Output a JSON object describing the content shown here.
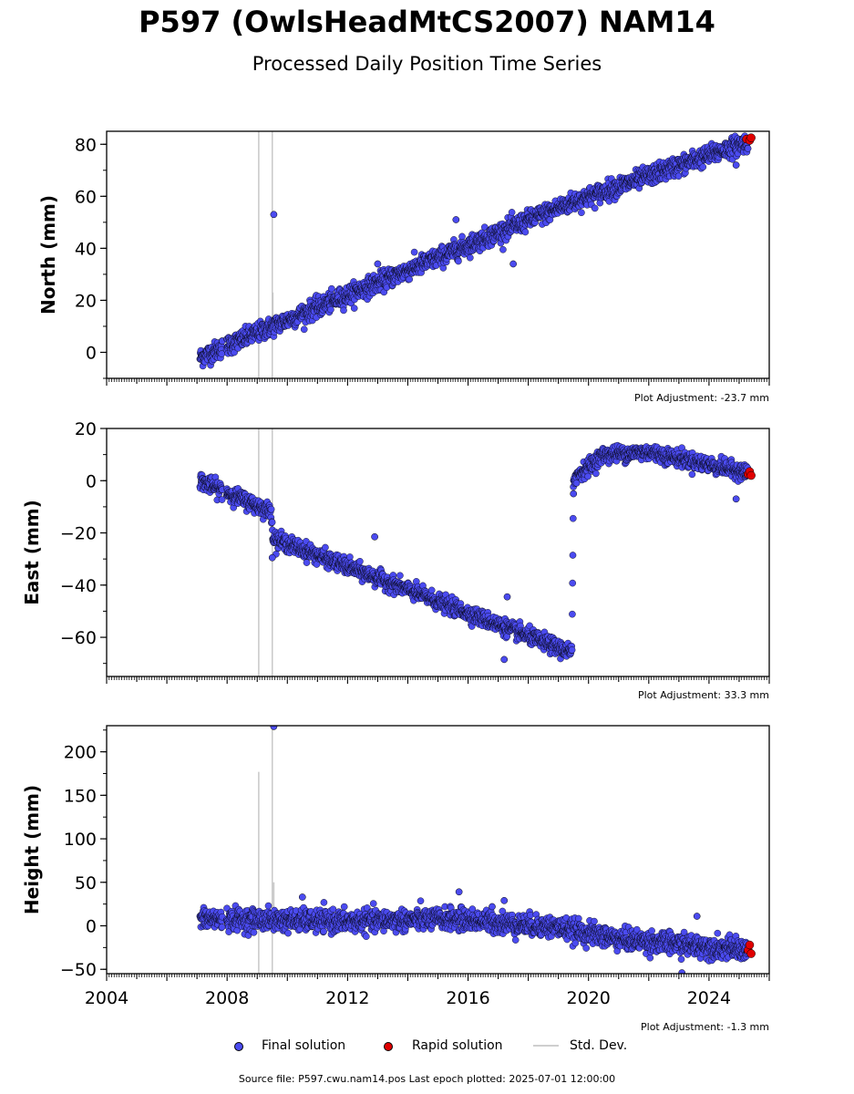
{
  "title": "P597 (OwlsHeadMtCS2007) NAM14",
  "subtitle": "Processed Daily Position Time Series",
  "legend": {
    "final_label": "Final solution",
    "rapid_label": "Rapid solution",
    "std_label": "Std. Dev."
  },
  "footer": {
    "source_text": "Source file: P597.cwu.nam14.pos  Last epoch plotted: 2025-07-01 12:00:00"
  },
  "colors": {
    "final": "#4b4bf0",
    "rapid": "#e00000",
    "stddev": "#c8c8c8",
    "marker_edge": "#000000"
  },
  "chart_data": [
    {
      "type": "scatter",
      "name_key": "north",
      "ylabel": "North (mm)",
      "xlim": [
        2004.0,
        2026.0
      ],
      "ylim": [
        -10,
        85
      ],
      "yticks": [
        0,
        20,
        40,
        60,
        80
      ],
      "xticks": [],
      "adjustment": "Plot Adjustment: -23.7 mm",
      "trend": [
        [
          2007.1,
          -2
        ],
        [
          2009.5,
          10
        ],
        [
          2019.3,
          57
        ],
        [
          2025.3,
          81
        ]
      ],
      "scatter_sd": 1.8,
      "outliers": [
        [
          2009.55,
          53
        ],
        [
          2015.6,
          51
        ],
        [
          2017.5,
          34
        ],
        [
          2013.0,
          34
        ],
        [
          2024.9,
          72
        ]
      ],
      "stddev_lines": [
        [
          2009.05,
          -10,
          85
        ],
        [
          2009.5,
          -10,
          85
        ],
        [
          2009.52,
          12,
          23
        ]
      ],
      "rapid_points": [
        [
          2025.25,
          82
        ],
        [
          2025.35,
          81.5
        ],
        [
          2025.4,
          82.5
        ]
      ],
      "series": [
        {
          "values": "final"
        }
      ]
    },
    {
      "type": "scatter",
      "name_key": "east",
      "ylabel": "East (mm)",
      "xlim": [
        2004.0,
        2026.0
      ],
      "ylim": [
        -75,
        20
      ],
      "yticks": [
        -60,
        -40,
        -20,
        0,
        20
      ],
      "xticks": [],
      "adjustment": "Plot Adjustment: 33.3 mm",
      "trend": [
        [
          2007.1,
          0
        ],
        [
          2009.48,
          -12
        ],
        [
          2009.52,
          -22
        ],
        [
          2019.45,
          -66
        ],
        [
          2019.5,
          1
        ],
        [
          2020.5,
          10
        ],
        [
          2022.0,
          11
        ],
        [
          2025.3,
          3
        ]
      ],
      "scatter_sd": 1.5,
      "outliers": [
        [
          2009.5,
          -29.5
        ],
        [
          2012.9,
          -21.5
        ],
        [
          2017.2,
          -68.5
        ],
        [
          2017.3,
          -44.5
        ],
        [
          2024.9,
          -7
        ],
        [
          2019.5,
          -5
        ]
      ],
      "stddev_lines": [
        [
          2009.05,
          -75,
          20
        ],
        [
          2009.5,
          -75,
          20
        ]
      ],
      "rapid_points": [
        [
          2025.3,
          2.5
        ],
        [
          2025.35,
          3.5
        ],
        [
          2025.4,
          2
        ]
      ],
      "series": [
        {
          "values": "final"
        }
      ]
    },
    {
      "type": "scatter",
      "name_key": "height",
      "ylabel": "Height (mm)",
      "xlim": [
        2004.0,
        2026.0
      ],
      "ylim": [
        -55,
        230
      ],
      "yticks": [
        -50,
        0,
        50,
        100,
        150,
        200
      ],
      "xticks": [
        2004,
        2008,
        2012,
        2016,
        2020,
        2024
      ],
      "adjustment": "Plot Adjustment: -1.3 mm",
      "trend": [
        [
          2007.1,
          8
        ],
        [
          2012.0,
          5
        ],
        [
          2015.5,
          8
        ],
        [
          2019.0,
          -2
        ],
        [
          2021.0,
          -15
        ],
        [
          2025.3,
          -28
        ]
      ],
      "scatter_sd": 6,
      "outliers": [
        [
          2009.55,
          229
        ],
        [
          2015.7,
          39
        ],
        [
          2016.8,
          22
        ],
        [
          2017.2,
          29
        ],
        [
          2023.6,
          11
        ],
        [
          2023.1,
          -54
        ],
        [
          2010.5,
          33
        ]
      ],
      "stddev_lines": [
        [
          2009.05,
          -55,
          177
        ],
        [
          2009.5,
          -55,
          230
        ],
        [
          2009.55,
          -10,
          50
        ]
      ],
      "rapid_points": [
        [
          2025.3,
          -28
        ],
        [
          2025.35,
          -22
        ],
        [
          2025.4,
          -32
        ]
      ],
      "series": [
        {
          "values": "final"
        }
      ]
    }
  ]
}
